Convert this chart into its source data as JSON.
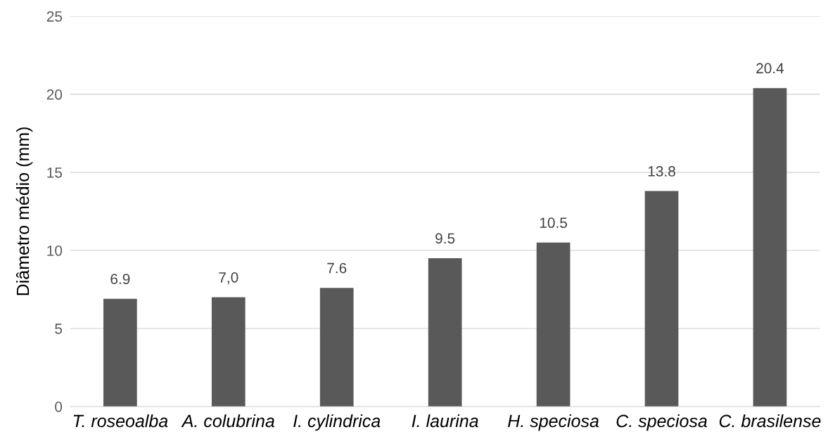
{
  "chart_data": {
    "type": "bar",
    "ylabel": "Diâmetro médio (mm)",
    "categories": [
      "T. roseoalba",
      "A. colubrina",
      "I. cylindrica",
      "I. laurina",
      "H. speciosa",
      "C. speciosa",
      "C. brasilense"
    ],
    "values": [
      6.9,
      7.0,
      7.6,
      9.5,
      10.5,
      13.8,
      20.4
    ],
    "value_labels": [
      "6.9",
      "7,0",
      "7.6",
      "9.5",
      "10.5",
      "13.8",
      "20.4"
    ],
    "color": "#595959",
    "ylim": [
      0,
      25
    ],
    "yticks": [
      0,
      5,
      10,
      15,
      20,
      25
    ],
    "grid": "y",
    "legend": false
  }
}
